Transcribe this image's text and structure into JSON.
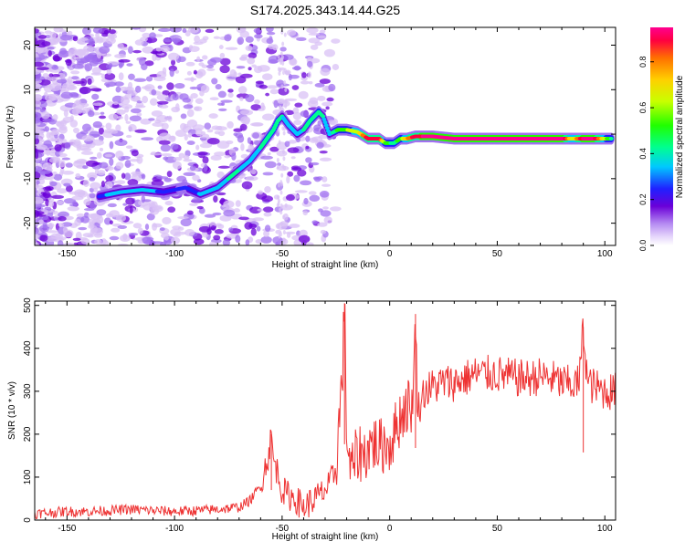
{
  "figure_title": "S174.2025.343.14.44.G25",
  "colors": {
    "snr_line": "#ee3333",
    "colormap": [
      "#ffffff",
      "#d9c2f5",
      "#a070f0",
      "#6a00d8",
      "#2020ff",
      "#00c8ff",
      "#00ff90",
      "#20ff00",
      "#c8ff00",
      "#ffd000",
      "#ff7000",
      "#ff0040",
      "#ff0090"
    ]
  },
  "chart_data": [
    {
      "type": "heatmap",
      "title": "S174.2025.343.14.44.G25",
      "xlabel": "Height of straight line (km)",
      "ylabel": "Frequency (Hz)",
      "xlim": [
        -165,
        105
      ],
      "ylim": [
        -25,
        24
      ],
      "xticks": [
        -150,
        -100,
        -50,
        0,
        50,
        100
      ],
      "xtick_labels": [
        "-150",
        "-100",
        "-50",
        "0",
        "50",
        "100"
      ],
      "yticks": [
        -20,
        -10,
        0,
        10,
        20
      ],
      "ytick_labels": [
        "-20",
        "-10",
        "0",
        "10",
        "20"
      ],
      "colorbar": {
        "label": "Normalized spectral amplitude",
        "range": [
          0,
          0.95
        ],
        "ticks": [
          0,
          0.2,
          0.4,
          0.6,
          0.8
        ],
        "tick_labels": [
          "0.0",
          "0.2",
          "0.4",
          "0.6",
          "0.8"
        ]
      },
      "ridge": {
        "description": "dominant frequency track",
        "x": [
          -135,
          -125,
          -115,
          -105,
          -95,
          -88,
          -80,
          -75,
          -70,
          -65,
          -60,
          -57,
          -54,
          -52,
          -50,
          -47,
          -43,
          -40,
          -37,
          -33,
          -31,
          -28,
          -24,
          -20,
          -15,
          -10,
          -5,
          -2,
          2,
          5,
          8,
          12,
          20,
          30,
          40,
          50,
          60,
          70,
          80,
          85,
          90,
          95,
          100,
          103
        ],
        "y": [
          -14,
          -13,
          -12.5,
          -13,
          -12,
          -13.5,
          -12,
          -10,
          -8,
          -6,
          -3,
          -1,
          1,
          3,
          4,
          2,
          0,
          1,
          3,
          5,
          4,
          0,
          1,
          1,
          0.5,
          -1,
          -1,
          -2,
          -2,
          -1,
          -1,
          -0.5,
          -0.5,
          -1,
          -1,
          -1,
          -1,
          -1,
          -1,
          -1,
          -1,
          -1,
          -1,
          -1
        ],
        "amplitude": [
          0.3,
          0.35,
          0.35,
          0.3,
          0.28,
          0.32,
          0.35,
          0.4,
          0.4,
          0.35,
          0.4,
          0.45,
          0.45,
          0.45,
          0.4,
          0.35,
          0.35,
          0.4,
          0.45,
          0.45,
          0.4,
          0.35,
          0.5,
          0.55,
          0.6,
          0.85,
          0.85,
          0.5,
          0.45,
          0.5,
          0.7,
          0.85,
          0.9,
          0.95,
          0.95,
          0.95,
          0.95,
          0.95,
          0.95,
          0.6,
          0.9,
          0.9,
          0.6,
          0.45
        ]
      }
    },
    {
      "type": "line",
      "xlabel": "Height of straight line (km)",
      "ylabel": "SNR (10 * v/v)",
      "xlim": [
        -165,
        105
      ],
      "ylim": [
        0,
        510
      ],
      "xticks": [
        -150,
        -100,
        -50,
        0,
        50,
        100
      ],
      "xtick_labels": [
        "-150",
        "-100",
        "-50",
        "0",
        "50",
        "100"
      ],
      "yticks": [
        0,
        100,
        200,
        300,
        400,
        500
      ],
      "ytick_labels": [
        "0",
        "100",
        "200",
        "300",
        "400",
        "500"
      ],
      "series": [
        {
          "name": "SNR",
          "x": [
            -165,
            -150,
            -140,
            -130,
            -120,
            -110,
            -100,
            -90,
            -80,
            -70,
            -65,
            -60,
            -58,
            -56,
            -55,
            -54,
            -52,
            -50,
            -48,
            -46,
            -44,
            -42,
            -40,
            -36,
            -32,
            -28,
            -25,
            -22,
            -21,
            -20,
            -19,
            -18,
            -16,
            -14,
            -12,
            -10,
            -8,
            -6,
            -4,
            -2,
            0,
            2,
            4,
            6,
            8,
            10,
            11,
            12,
            13,
            14,
            16,
            20,
            25,
            30,
            35,
            40,
            45,
            50,
            55,
            60,
            65,
            70,
            75,
            80,
            85,
            88,
            90,
            92,
            95,
            100,
            105
          ],
          "y": [
            15,
            20,
            20,
            22,
            25,
            22,
            20,
            22,
            25,
            30,
            45,
            80,
            120,
            160,
            200,
            140,
            110,
            70,
            60,
            55,
            50,
            40,
            30,
            45,
            60,
            80,
            120,
            340,
            505,
            200,
            150,
            110,
            140,
            160,
            150,
            170,
            180,
            175,
            170,
            180,
            175,
            200,
            230,
            250,
            270,
            260,
            300,
            480,
            250,
            270,
            300,
            310,
            320,
            320,
            330,
            340,
            340,
            340,
            335,
            330,
            330,
            335,
            330,
            320,
            315,
            320,
            450,
            320,
            310,
            300,
            300
          ]
        }
      ]
    }
  ]
}
